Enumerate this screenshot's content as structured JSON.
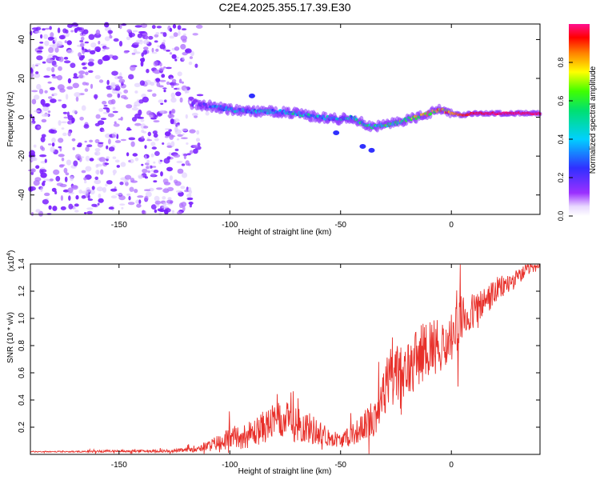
{
  "title": "C2E4.2025.355.17.39.E30",
  "chart_data": [
    {
      "type": "heatmap",
      "name": "spectrogram",
      "xlabel": "Height of straight line (km)",
      "ylabel": "Frequency (Hz)",
      "xlim": [
        -190,
        40
      ],
      "ylim": [
        -50,
        48
      ],
      "xticks": [
        -150,
        -100,
        -50,
        0
      ],
      "xtick_labels": [
        "-150",
        "-100",
        "-50",
        "0"
      ],
      "yticks": [
        -40,
        -20,
        0,
        20,
        40
      ],
      "ytick_labels": [
        "-40",
        "-20",
        "0",
        "20",
        "40"
      ],
      "grid": false,
      "description_track": {
        "x": [
          -118,
          -110,
          -100,
          -90,
          -80,
          -70,
          -60,
          -50,
          -45,
          -40,
          -35,
          -30,
          -25,
          -20,
          -15,
          -10,
          -5,
          0,
          5,
          10,
          20,
          30,
          40
        ],
        "y": [
          7,
          6,
          4,
          3,
          3,
          2,
          0,
          -1,
          0,
          -3,
          -5,
          -4,
          -3,
          -1,
          0,
          2,
          4,
          2,
          1,
          2,
          2,
          2,
          2
        ],
        "amplitude": [
          0.05,
          0.25,
          0.35,
          0.35,
          0.35,
          0.4,
          0.35,
          0.35,
          0.4,
          0.45,
          0.45,
          0.5,
          0.55,
          0.6,
          0.65,
          0.7,
          0.75,
          0.8,
          0.9,
          0.95,
          0.97,
          0.98,
          0.98
        ]
      },
      "colorbar": {
        "label": "Normalized spectral amplitude",
        "range": [
          0,
          1
        ],
        "ticks": [
          0,
          0.2,
          0.4,
          0.6,
          0.8
        ],
        "tick_labels": [
          "0.0",
          "0.2",
          "0.4",
          "0.6",
          "0.8"
        ]
      }
    },
    {
      "type": "line",
      "name": "snr",
      "xlabel": "Height of straight line (km)",
      "ylabel": "SNR (10 * v/v)",
      "scale_label": "(x10",
      "scale_exponent": "4",
      "scale_close": ")",
      "xlim": [
        -190,
        40
      ],
      "ylim": [
        0,
        1.4
      ],
      "xticks": [
        -150,
        -100,
        -50,
        0
      ],
      "xtick_labels": [
        "-150",
        "-100",
        "-50",
        "0"
      ],
      "yticks": [
        0.2,
        0.4,
        0.6,
        0.8,
        1.0,
        1.2,
        1.4
      ],
      "ytick_labels": [
        "0.2",
        "0.4",
        "0.6",
        "0.8",
        "1.0",
        "1.2",
        "1.4"
      ],
      "color": "#e8302a",
      "series": [
        {
          "name": "SNR",
          "x": [
            -190,
            -170,
            -150,
            -130,
            -120,
            -110,
            -105,
            -100,
            -95,
            -90,
            -85,
            -80,
            -75,
            -70,
            -65,
            -60,
            -55,
            -50,
            -45,
            -40,
            -35,
            -30,
            -28,
            -25,
            -22,
            -20,
            -15,
            -10,
            -5,
            0,
            5,
            10,
            15,
            20,
            25,
            30,
            35,
            40
          ],
          "y": [
            0.02,
            0.02,
            0.025,
            0.025,
            0.03,
            0.06,
            0.09,
            0.12,
            0.13,
            0.15,
            0.2,
            0.24,
            0.25,
            0.22,
            0.2,
            0.16,
            0.13,
            0.1,
            0.14,
            0.2,
            0.28,
            0.45,
            0.62,
            0.62,
            0.5,
            0.62,
            0.72,
            0.8,
            0.8,
            0.85,
            1.0,
            1.05,
            1.12,
            1.2,
            1.25,
            1.3,
            1.37,
            1.38
          ],
          "noise": [
            0.005,
            0.005,
            0.01,
            0.01,
            0.015,
            0.04,
            0.06,
            0.08,
            0.09,
            0.1,
            0.12,
            0.13,
            0.14,
            0.13,
            0.12,
            0.1,
            0.07,
            0.05,
            0.08,
            0.1,
            0.15,
            0.2,
            0.25,
            0.28,
            0.25,
            0.22,
            0.22,
            0.22,
            0.2,
            0.2,
            0.18,
            0.14,
            0.12,
            0.1,
            0.08,
            0.06,
            0.04,
            0.03
          ]
        }
      ]
    }
  ]
}
